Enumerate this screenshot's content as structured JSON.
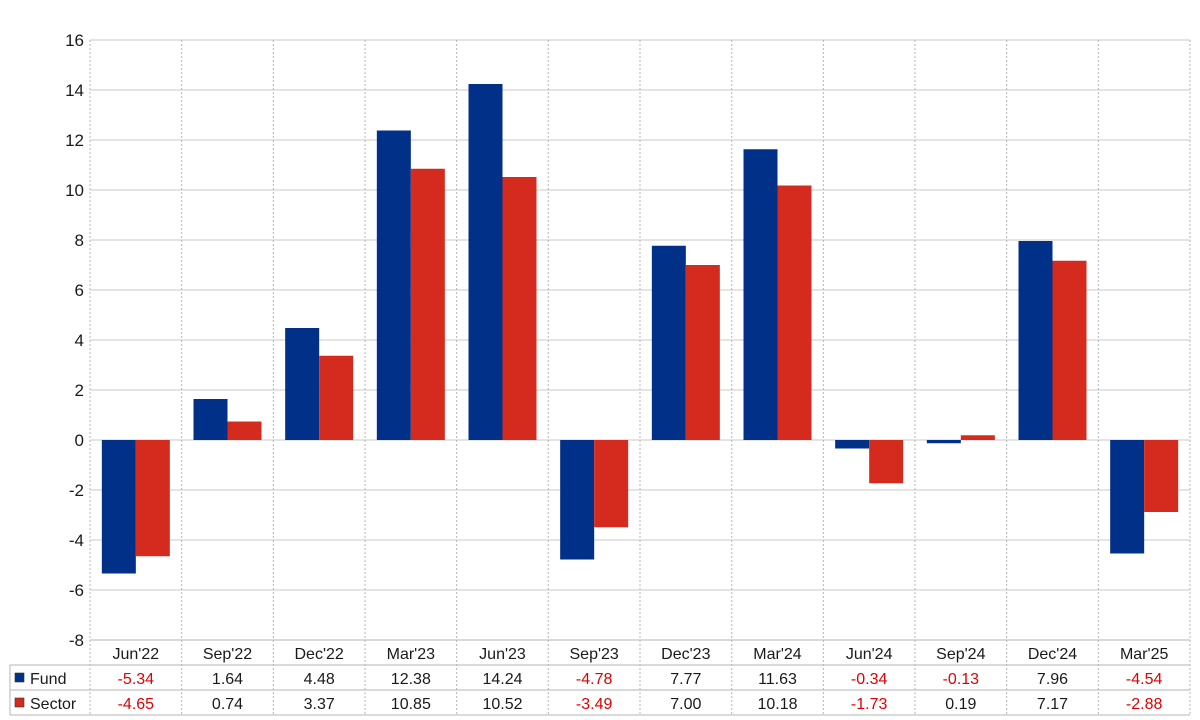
{
  "chart_data": {
    "type": "bar",
    "categories": [
      "Jun'22",
      "Sep'22",
      "Dec'22",
      "Mar'23",
      "Jun'23",
      "Sep'23",
      "Dec'23",
      "Mar'24",
      "Jun'24",
      "Sep'24",
      "Dec'24",
      "Mar'25"
    ],
    "series": [
      {
        "name": "Fund",
        "color": "#003087",
        "values": [
          -5.34,
          1.64,
          4.48,
          12.38,
          14.24,
          -4.78,
          7.77,
          11.63,
          -0.34,
          -0.13,
          7.96,
          -4.54
        ],
        "labels": [
          "-5.34",
          "1.64",
          "4.48",
          "12.38",
          "14.24",
          "-4.78",
          "7.77",
          "11.63",
          "-0.34",
          "-0.13",
          "7.96",
          "-4.54"
        ]
      },
      {
        "name": "Sector",
        "color": "#d52b1e",
        "values": [
          -4.65,
          0.74,
          3.37,
          10.85,
          10.52,
          -3.49,
          7.0,
          10.18,
          -1.73,
          0.19,
          7.17,
          -2.88
        ],
        "labels": [
          "-4.65",
          "0.74",
          "3.37",
          "10.85",
          "10.52",
          "-3.49",
          "7.00",
          "10.18",
          "-1.73",
          "0.19",
          "7.17",
          "-2.88"
        ]
      }
    ],
    "yticks": [
      "16",
      "14",
      "12",
      "10",
      "8",
      "6",
      "4",
      "2",
      "0",
      "-2",
      "-4",
      "-6",
      "-8"
    ],
    "ylim": [
      -8,
      16
    ],
    "title": "",
    "xlabel": "",
    "ylabel": "",
    "grid": true,
    "legend": "data-table-bottom",
    "negative_label_color": "#e00000",
    "positive_label_color": "#1a1a1a"
  }
}
